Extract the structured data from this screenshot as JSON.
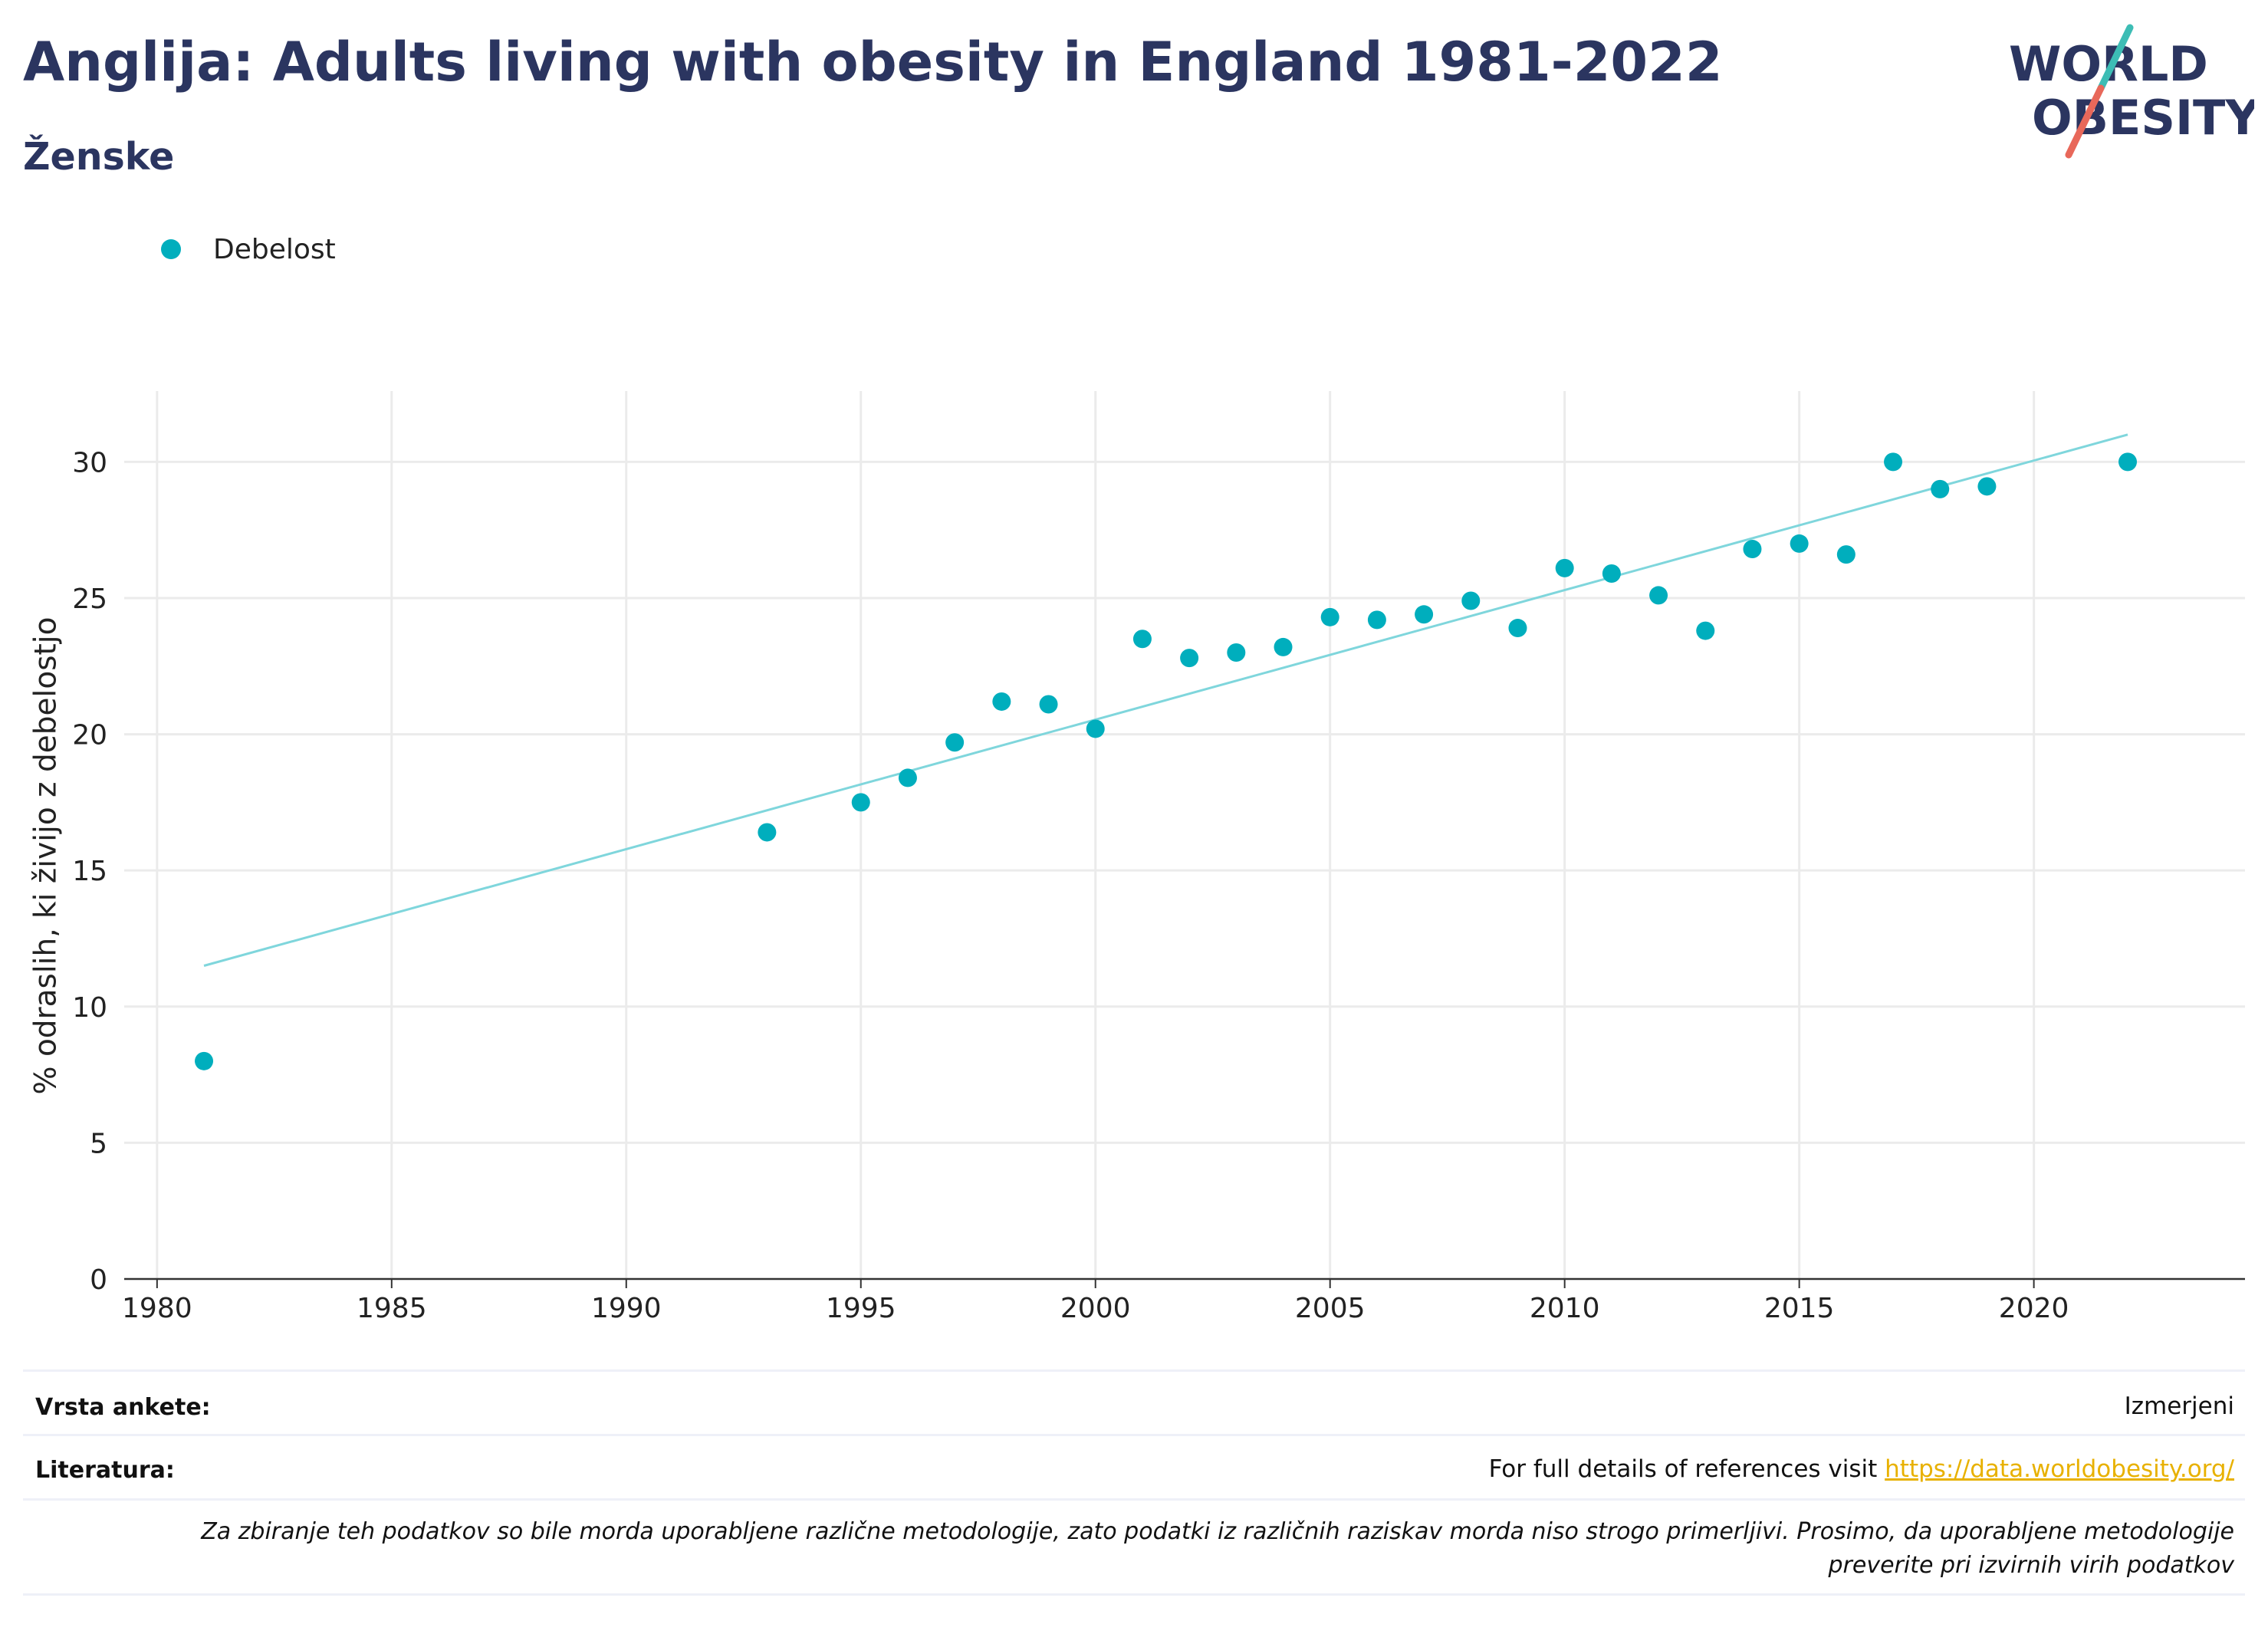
{
  "header": {
    "title": "Anglija: Adults living with obesity in England 1981-2022",
    "subtitle": "Ženske"
  },
  "logo": {
    "line1": "WORLD",
    "line2": "OBESITY",
    "teal": "#3dbdb5",
    "coral": "#e8685a",
    "navy": "#2b3560"
  },
  "legend": {
    "label": "Debelost",
    "color": "#00aebd"
  },
  "chart_data": {
    "type": "scatter",
    "ylabel": "% odraslih, ki živijo z debelostjo",
    "xlabel": "",
    "xlim": [
      1979.3,
      2024.5
    ],
    "ylim": [
      0,
      32.6
    ],
    "xticks": [
      1980,
      1985,
      1990,
      1995,
      2000,
      2005,
      2010,
      2015,
      2020
    ],
    "yticks": [
      0,
      5,
      10,
      15,
      20,
      25,
      30
    ],
    "grid": true,
    "legend_position": "top-left",
    "series": [
      {
        "name": "Debelost",
        "color": "#00aebd",
        "points": [
          [
            1981,
            8.0
          ],
          [
            1993,
            16.4
          ],
          [
            1995,
            17.5
          ],
          [
            1996,
            18.4
          ],
          [
            1997,
            19.7
          ],
          [
            1998,
            21.2
          ],
          [
            1999,
            21.1
          ],
          [
            2000,
            20.2
          ],
          [
            2001,
            23.5
          ],
          [
            2002,
            22.8
          ],
          [
            2003,
            23.0
          ],
          [
            2004,
            23.2
          ],
          [
            2005,
            24.3
          ],
          [
            2006,
            24.2
          ],
          [
            2007,
            24.4
          ],
          [
            2008,
            24.9
          ],
          [
            2009,
            23.9
          ],
          [
            2010,
            26.1
          ],
          [
            2011,
            25.9
          ],
          [
            2012,
            25.1
          ],
          [
            2013,
            23.8
          ],
          [
            2014,
            26.8
          ],
          [
            2015,
            27.0
          ],
          [
            2016,
            26.6
          ],
          [
            2017,
            30.0
          ],
          [
            2018,
            29.0
          ],
          [
            2019,
            29.1
          ],
          [
            2022,
            30.0
          ]
        ]
      }
    ],
    "trendline": {
      "color": "#7fd6dc",
      "points": [
        [
          1981,
          11.5
        ],
        [
          2022,
          31.0
        ]
      ]
    }
  },
  "table": {
    "survey_label": "Vrsta ankete:",
    "survey_value": "Izmerjeni",
    "refs_label": "Literatura:",
    "refs_text": "For full details of references visit ",
    "refs_link": "https://data.worldobesity.org/",
    "note_line1": "Za zbiranje teh podatkov so bile morda uporabljene različne metodologije, zato podatki iz različnih raziskav morda niso strogo primerljivi. Prosimo, da uporabljene metodologije",
    "note_line2": "preverite pri izvirnih virih podatkov"
  }
}
